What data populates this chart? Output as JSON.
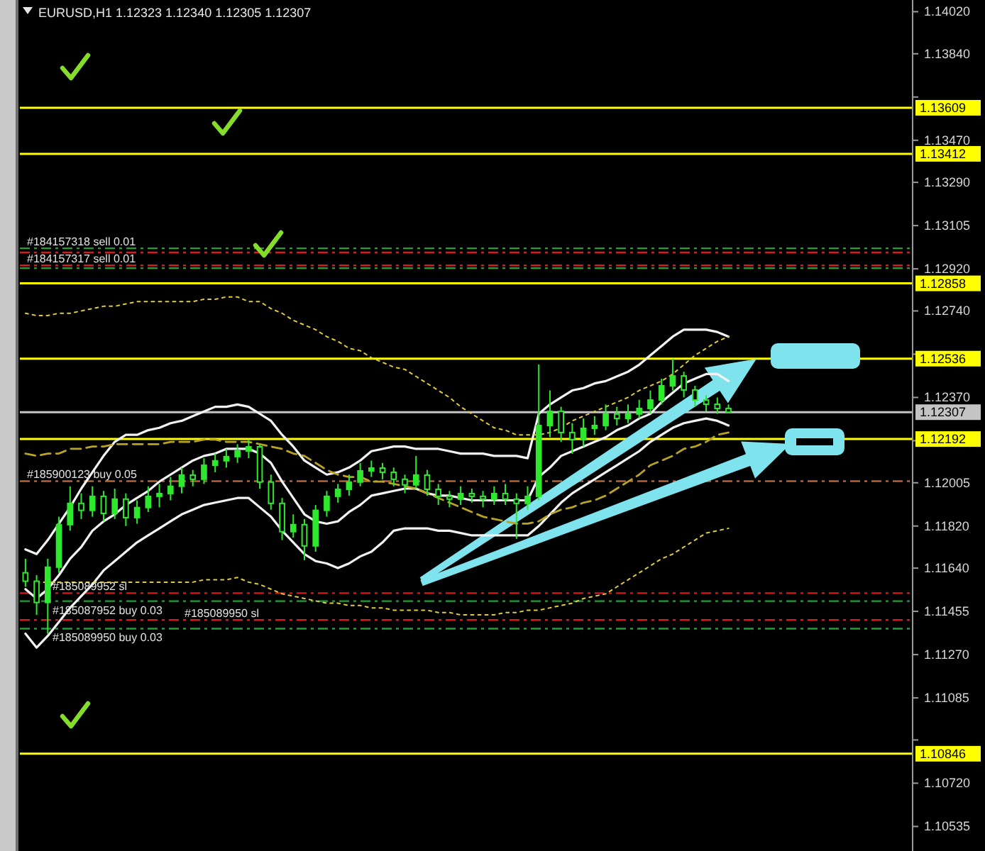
{
  "chart_data": {
    "type": "candlestick",
    "title": "EURUSD,H1 1.12323 1.12340 1.12305 1.12307",
    "color": "#2ee82e",
    "categories": [
      null,
      null,
      null,
      null,
      null,
      null,
      null,
      null,
      null,
      null,
      null,
      null,
      null,
      null,
      null,
      null,
      null,
      null,
      null,
      null,
      null,
      null,
      null,
      null,
      null,
      null,
      null,
      null,
      null,
      null,
      null,
      null,
      null,
      null,
      null,
      null,
      null,
      null,
      null,
      null,
      null,
      null,
      null,
      null,
      null,
      null,
      null,
      null,
      null,
      null,
      null,
      null,
      null,
      null,
      null,
      null,
      null,
      null,
      null,
      null,
      null,
      null,
      null,
      null,
      null,
      null,
      null,
      null,
      null,
      null,
      null,
      null,
      null,
      null,
      null,
      null,
      null,
      null,
      null,
      null
    ],
    "ohlc": [
      [
        1.1162,
        1.1168,
        1.1156,
        1.11584
      ],
      [
        1.11584,
        1.1161,
        1.1144,
        1.11493
      ],
      [
        1.11493,
        1.1168,
        1.11359,
        1.11644
      ],
      [
        1.11644,
        1.1186,
        1.1162,
        1.11826
      ],
      [
        1.11826,
        1.1199,
        1.118,
        1.11917
      ],
      [
        1.11917,
        1.1196,
        1.1185,
        1.11887
      ],
      [
        1.11887,
        1.1199,
        1.1186,
        1.11947
      ],
      [
        1.11947,
        1.1197,
        1.1184,
        1.11874
      ],
      [
        1.11874,
        1.1198,
        1.1185,
        1.11935
      ],
      [
        1.11935,
        1.1196,
        1.1182,
        1.11856
      ],
      [
        1.11856,
        1.1193,
        1.1183,
        1.11899
      ],
      [
        1.11899,
        1.1199,
        1.1188,
        1.11947
      ],
      [
        1.11947,
        1.12,
        1.119,
        1.11959
      ],
      [
        1.11959,
        1.1203,
        1.1193,
        1.1199
      ],
      [
        1.1199,
        1.1207,
        1.1196,
        1.12038
      ],
      [
        1.12038,
        1.1206,
        1.1199,
        1.1202
      ],
      [
        1.1202,
        1.1211,
        1.12,
        1.1208
      ],
      [
        1.1208,
        1.1213,
        1.1205,
        1.12099
      ],
      [
        1.12099,
        1.1215,
        1.1207,
        1.12117
      ],
      [
        1.12117,
        1.1217,
        1.1209,
        1.12141
      ],
      [
        1.12141,
        1.1219,
        1.1211,
        1.12159
      ],
      [
        1.12159,
        1.1217,
        1.1198,
        1.12008
      ],
      [
        1.12008,
        1.1204,
        1.1189,
        1.11917
      ],
      [
        1.11917,
        1.1194,
        1.1176,
        1.11796
      ],
      [
        1.11796,
        1.1187,
        1.1177,
        1.11826
      ],
      [
        1.11826,
        1.1185,
        1.11674,
        1.11735
      ],
      [
        1.11735,
        1.1191,
        1.1171,
        1.11887
      ],
      [
        1.11887,
        1.1197,
        1.1186,
        1.11947
      ],
      [
        1.11947,
        1.12,
        1.1192,
        1.11977
      ],
      [
        1.11977,
        1.1204,
        1.1195,
        1.12008
      ],
      [
        1.12008,
        1.1209,
        1.1199,
        1.12056
      ],
      [
        1.12056,
        1.121,
        1.1203,
        1.12068
      ],
      [
        1.12068,
        1.1209,
        1.1202,
        1.1205
      ],
      [
        1.1205,
        1.1207,
        1.1199,
        1.1202
      ],
      [
        1.1202,
        1.1204,
        1.1196,
        1.11996
      ],
      [
        1.11996,
        1.1212,
        1.1198,
        1.12038
      ],
      [
        1.12038,
        1.1206,
        1.1195,
        1.11977
      ],
      [
        1.11977,
        1.12,
        1.1191,
        1.11947
      ],
      [
        1.11947,
        1.1197,
        1.119,
        1.11935
      ],
      [
        1.11935,
        1.1199,
        1.1191,
        1.11959
      ],
      [
        1.11959,
        1.1198,
        1.1192,
        1.11947
      ],
      [
        1.11947,
        1.1197,
        1.119,
        1.11935
      ],
      [
        1.11935,
        1.1199,
        1.1191,
        1.11959
      ],
      [
        1.11959,
        1.12,
        1.1191,
        1.11935
      ],
      [
        1.11935,
        1.1196,
        1.11765,
        1.11917
      ],
      [
        1.11917,
        1.1199,
        1.1189,
        1.11947
      ],
      [
        1.11947,
        1.12511,
        1.1193,
        1.1225
      ],
      [
        1.1225,
        1.124,
        1.122,
        1.12311
      ],
      [
        1.12311,
        1.1233,
        1.1218,
        1.1222
      ],
      [
        1.1222,
        1.1226,
        1.12129,
        1.1219
      ],
      [
        1.1219,
        1.1228,
        1.1216,
        1.12238
      ],
      [
        1.12238,
        1.1229,
        1.1221,
        1.1225
      ],
      [
        1.1225,
        1.1234,
        1.1223,
        1.12299
      ],
      [
        1.12299,
        1.1233,
        1.1225,
        1.1228
      ],
      [
        1.1228,
        1.1234,
        1.1226,
        1.12299
      ],
      [
        1.12299,
        1.1236,
        1.1228,
        1.12323
      ],
      [
        1.12323,
        1.124,
        1.123,
        1.12359
      ],
      [
        1.12359,
        1.1245,
        1.1234,
        1.1242
      ],
      [
        1.1242,
        1.12535,
        1.124,
        1.12462
      ],
      [
        1.12462,
        1.1248,
        1.1237,
        1.12402
      ],
      [
        1.12402,
        1.1242,
        1.1233,
        1.12359
      ],
      [
        1.12359,
        1.1238,
        1.1231,
        1.12341
      ],
      [
        1.12341,
        1.1237,
        1.123,
        1.12323
      ],
      [
        1.12323,
        1.1234,
        1.12305,
        1.12307
      ],
      null,
      null,
      null,
      null,
      null,
      null,
      null,
      null,
      null,
      null,
      null,
      null,
      null,
      null,
      null,
      null
    ],
    "series": [
      {
        "type": "line",
        "color": "#f2f2f2",
        "line_style": "solid",
        "values": [
          1.1172,
          1.117,
          1.1176,
          1.1183,
          1.119,
          1.1198,
          1.1205,
          1.1212,
          1.1218,
          1.1221,
          1.1221,
          1.1223,
          1.1224,
          1.1226,
          1.1227,
          1.1229,
          1.1231,
          1.1233,
          1.1233,
          1.1234,
          1.1233,
          1.123,
          1.1227,
          1.1221,
          1.1216,
          1.121,
          1.1207,
          1.1204,
          1.1205,
          1.1207,
          1.121,
          1.1214,
          1.1215,
          1.1216,
          1.1216,
          1.1215,
          1.1215,
          1.1215,
          1.1214,
          1.1213,
          1.1213,
          1.1213,
          1.1212,
          1.1212,
          1.1212,
          1.1211,
          1.123,
          1.1234,
          1.1237,
          1.124,
          1.1241,
          1.1243,
          1.1244,
          1.1246,
          1.1248,
          1.1251,
          1.1255,
          1.1259,
          1.1263,
          1.1266,
          1.1266,
          1.1266,
          1.1265,
          1.1263,
          null,
          null,
          null,
          null,
          null,
          null,
          null,
          null,
          null,
          null,
          null,
          null,
          null,
          null,
          null,
          null
        ]
      },
      {
        "type": "line",
        "color": "#f2f2f2",
        "line_style": "solid",
        "values": [
          1.1155,
          1.1151,
          1.1155,
          1.1161,
          1.1168,
          1.1173,
          1.118,
          1.1184,
          1.1187,
          1.1191,
          1.1194,
          1.1197,
          1.1201,
          1.1204,
          1.1207,
          1.121,
          1.1212,
          1.1213,
          1.1215,
          1.1215,
          1.1215,
          1.1213,
          1.1209,
          1.1201,
          1.1194,
          1.1187,
          1.1184,
          1.1183,
          1.1184,
          1.1188,
          1.1191,
          1.1195,
          1.1196,
          1.1197,
          1.1198,
          1.1198,
          1.1196,
          1.1195,
          1.1195,
          1.1194,
          1.1193,
          1.1193,
          1.1193,
          1.1193,
          1.1193,
          1.1193,
          1.1203,
          1.1207,
          1.1212,
          1.1214,
          1.1216,
          1.1218,
          1.122,
          1.1223,
          1.1225,
          1.1228,
          1.123,
          1.1235,
          1.1239,
          1.1243,
          1.1245,
          1.1247,
          1.1247,
          1.1244,
          null,
          null,
          null,
          null,
          null,
          null,
          null,
          null,
          null,
          null,
          null,
          null,
          null,
          null,
          null,
          null
        ]
      },
      {
        "type": "line",
        "color": "#f2f2f2",
        "line_style": "solid",
        "values": [
          1.1136,
          1.113,
          1.1135,
          1.1141,
          1.1147,
          1.1152,
          1.1157,
          1.1163,
          1.1167,
          1.1171,
          1.1175,
          1.1178,
          1.1181,
          1.1184,
          1.1187,
          1.1189,
          1.1191,
          1.1192,
          1.1193,
          1.1194,
          1.1194,
          1.119,
          1.1186,
          1.118,
          1.1175,
          1.117,
          1.1167,
          1.1166,
          1.1164,
          1.1166,
          1.1169,
          1.1171,
          1.1175,
          1.118,
          1.1181,
          1.1181,
          1.1181,
          1.118,
          1.118,
          1.1179,
          1.1178,
          1.1178,
          1.1178,
          1.1178,
          1.1178,
          1.1178,
          1.1182,
          1.1187,
          1.1192,
          1.1196,
          1.1199,
          1.1202,
          1.1205,
          1.1208,
          1.1211,
          1.1214,
          1.1218,
          1.1221,
          1.1224,
          1.1226,
          1.1227,
          1.1228,
          1.1227,
          1.1225,
          null,
          null,
          null,
          null,
          null,
          null,
          null,
          null,
          null,
          null,
          null,
          null,
          null,
          null,
          null,
          null
        ]
      },
      {
        "type": "line",
        "color": "#e0cc3a",
        "line_style": "dotted",
        "values": [
          1.1273,
          1.1272,
          1.1272,
          1.1273,
          1.1273,
          1.1274,
          1.1275,
          1.1276,
          1.1276,
          1.1277,
          1.1278,
          1.1278,
          1.1278,
          1.1278,
          1.1278,
          1.1278,
          1.1279,
          1.1279,
          1.128,
          1.128,
          1.1278,
          1.1278,
          1.1275,
          1.1273,
          1.127,
          1.1268,
          1.1266,
          1.1263,
          1.1261,
          1.1258,
          1.1257,
          1.1254,
          1.1252,
          1.125,
          1.1249,
          1.1246,
          1.1243,
          1.124,
          1.1237,
          1.1233,
          1.123,
          1.1227,
          1.1224,
          1.1223,
          1.1221,
          1.1221,
          1.1221,
          1.1222,
          1.1224,
          1.1227,
          1.1229,
          1.1231,
          1.1233,
          1.1235,
          1.1237,
          1.124,
          1.1242,
          1.1244,
          1.1247,
          1.1251,
          1.1255,
          1.1258,
          1.1261,
          1.1263,
          null,
          null,
          null,
          null,
          null,
          null,
          null,
          null,
          null,
          null,
          null,
          null,
          null,
          null,
          null,
          null
        ]
      },
      {
        "type": "line",
        "color": "#e0cc3a",
        "line_style": "dotted",
        "values": [
          null,
          1.1158,
          1.1158,
          1.1158,
          1.1158,
          1.1158,
          1.1158,
          1.1158,
          1.1158,
          1.1158,
          1.1158,
          1.1158,
          1.1158,
          1.1158,
          1.1158,
          1.1158,
          1.1159,
          1.1159,
          1.1159,
          1.116,
          1.1158,
          1.1157,
          1.1155,
          1.1153,
          1.1152,
          1.1151,
          1.115,
          1.1149,
          1.1149,
          1.1148,
          1.1148,
          1.1147,
          1.1147,
          1.1146,
          1.1146,
          1.1146,
          1.1146,
          1.1145,
          1.1145,
          1.1144,
          1.1144,
          1.1144,
          1.1144,
          1.1145,
          1.1145,
          1.1146,
          1.1146,
          1.1147,
          1.1148,
          1.1149,
          1.1151,
          1.1152,
          1.1153,
          1.1156,
          1.1159,
          1.1162,
          1.1165,
          1.1168,
          1.117,
          1.1173,
          1.1176,
          1.1179,
          1.118,
          1.1181,
          null,
          null,
          null,
          null,
          null,
          null,
          null,
          null,
          null,
          null,
          null,
          null,
          null,
          null,
          null,
          null
        ]
      },
      {
        "type": "line",
        "color": "#b9a325",
        "line_style": "dashed",
        "values": [
          1.1213,
          1.1212,
          1.1213,
          1.1213,
          1.1215,
          1.1215,
          1.1216,
          1.1216,
          1.1217,
          1.1217,
          1.1217,
          1.1217,
          1.1217,
          1.1218,
          1.1218,
          1.1218,
          1.1219,
          1.1219,
          1.1218,
          1.1218,
          1.1218,
          1.1217,
          1.1216,
          1.1215,
          1.1213,
          1.1212,
          1.1209,
          1.1206,
          1.1204,
          1.1203,
          1.1203,
          1.1201,
          1.1201,
          1.12,
          1.1199,
          1.1198,
          1.1196,
          1.1194,
          1.1192,
          1.119,
          1.1188,
          1.1186,
          1.1185,
          1.1184,
          1.1183,
          1.1183,
          1.1184,
          1.1187,
          1.1189,
          1.119,
          1.1192,
          1.1193,
          1.1195,
          1.1198,
          1.1201,
          1.1204,
          1.1208,
          1.121,
          1.1212,
          1.1215,
          1.1216,
          1.1218,
          1.1221,
          1.1222,
          null,
          null,
          null,
          null,
          null,
          null,
          null,
          null,
          null,
          null,
          null,
          null,
          null,
          null,
          null,
          null
        ]
      }
    ],
    "ref_lines": [
      {
        "axis": "y",
        "value": 1.13609,
        "label": "1.13609",
        "color": "#ffff00",
        "line_style": "solid"
      },
      {
        "axis": "y",
        "value": 1.13412,
        "label": "1.13412",
        "color": "#ffff00",
        "line_style": "solid"
      },
      {
        "axis": "y",
        "value": 1.12858,
        "label": "1.12858",
        "color": "#ffff00",
        "line_style": "solid"
      },
      {
        "axis": "y",
        "value": 1.12536,
        "label": "1.12536",
        "color": "#ffff00",
        "line_style": "solid"
      },
      {
        "axis": "y",
        "value": 1.12192,
        "label": "1.12192",
        "color": "#ffff00",
        "line_style": "solid"
      },
      {
        "axis": "y",
        "value": 1.10846,
        "label": "1.10846",
        "color": "#ffff00",
        "line_style": "solid"
      },
      {
        "axis": "y",
        "value": 1.12307,
        "label": "1.12307",
        "color": "#c4c4c4",
        "line_style": "solid"
      },
      {
        "axis": "y",
        "value": 1.13008,
        "label": "#184157318 sell 0.01",
        "color": "#1fa035",
        "line_style": "dashed"
      },
      {
        "axis": "y",
        "value": 1.1299,
        "color": "#d41c1c",
        "line_style": "dashed"
      },
      {
        "axis": "y",
        "value": 1.12935,
        "color": "#d41c1c",
        "line_style": "dashed"
      },
      {
        "axis": "y",
        "value": 1.12923,
        "label": "#184157317 sell 0.01",
        "color": "#1fa035",
        "line_style": "dashed"
      },
      {
        "axis": "y",
        "value": 1.12012,
        "label": "#185900123 buy 0.05",
        "color": "#b4643a",
        "line_style": "dashed"
      },
      {
        "axis": "y",
        "value": 1.11533,
        "label": "#185089952 sl",
        "color": "#d41c1c",
        "line_style": "dashed"
      },
      {
        "axis": "y",
        "value": 1.11499,
        "label": "#185087952 buy 0.03",
        "color": "#1fa035",
        "line_style": "dashed"
      },
      {
        "axis": "y",
        "value": 1.11418,
        "label": "#185089950 sl",
        "color": "#d41c1c",
        "line_style": "dashed"
      },
      {
        "axis": "y",
        "value": 1.11381,
        "label": "#185089950 buy 0.03",
        "color": "#1fa035",
        "line_style": "dashed"
      }
    ],
    "ylim": [
      1.1043,
      1.1407
    ],
    "yticks": [
      {
        "value": 1.1402,
        "label": "1.14020"
      },
      {
        "value": 1.1384,
        "label": "1.13840"
      },
      {
        "value": 1.13655,
        "label": null
      },
      {
        "value": 1.1347,
        "label": "1.13470"
      },
      {
        "value": 1.1329,
        "label": "1.13290"
      },
      {
        "value": 1.13105,
        "label": "1.13105"
      },
      {
        "value": 1.1292,
        "label": "1.12920"
      },
      {
        "value": 1.1274,
        "label": "1.12740"
      },
      {
        "value": 1.12555,
        "label": null
      },
      {
        "value": 1.1237,
        "label": "1.12370"
      },
      {
        "value": 1.12185,
        "label": null
      },
      {
        "value": 1.12005,
        "label": "1.12005"
      },
      {
        "value": 1.1182,
        "label": "1.11820"
      },
      {
        "value": 1.1164,
        "label": "1.11640"
      },
      {
        "value": 1.11455,
        "label": "1.11455"
      },
      {
        "value": 1.1127,
        "label": "1.11270"
      },
      {
        "value": 1.11085,
        "label": "1.11085"
      },
      {
        "value": 1.10905,
        "label": null
      },
      {
        "value": 1.1072,
        "label": "1.10720"
      },
      {
        "value": 1.10535,
        "label": "1.10535"
      }
    ],
    "tick_labels": "y"
  }
}
